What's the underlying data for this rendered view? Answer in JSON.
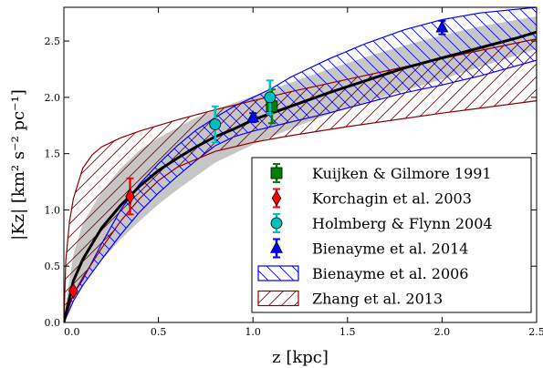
{
  "chart_data": {
    "type": "scatter",
    "title": "",
    "xlabel": "z [kpc]",
    "ylabel": "|Kz| [km² s⁻² pc⁻¹]",
    "xlim": [
      0.0,
      2.5
    ],
    "ylim": [
      0.0,
      2.8
    ],
    "grid": false,
    "legend_position": "bottom-right",
    "x_ticks": [
      "0.0",
      "0.5",
      "1.0",
      "1.5",
      "2.0",
      "2.5"
    ],
    "y_ticks": [
      "0.0",
      "0.5",
      "1.0",
      "1.5",
      "2.0",
      "2.5"
    ],
    "best_fit": {
      "color": "#000000",
      "curve": [
        [
          0.0,
          0.0
        ],
        [
          0.05,
          0.37
        ],
        [
          0.1,
          0.56
        ],
        [
          0.2,
          0.84
        ],
        [
          0.3,
          1.04
        ],
        [
          0.4,
          1.21
        ],
        [
          0.5,
          1.35
        ],
        [
          0.6,
          1.46
        ],
        [
          0.7,
          1.56
        ],
        [
          0.8,
          1.65
        ],
        [
          0.9,
          1.72
        ],
        [
          1.0,
          1.8
        ],
        [
          1.2,
          1.92
        ],
        [
          1.4,
          2.04
        ],
        [
          1.6,
          2.15
        ],
        [
          1.8,
          2.26
        ],
        [
          2.0,
          2.35
        ],
        [
          2.2,
          2.44
        ],
        [
          2.4,
          2.53
        ],
        [
          2.5,
          2.58
        ]
      ]
    },
    "gray_band": {
      "color": "#c6c6c6",
      "upper": [
        [
          0.0,
          0.05
        ],
        [
          0.05,
          0.6
        ],
        [
          0.1,
          0.88
        ],
        [
          0.2,
          1.16
        ],
        [
          0.3,
          1.37
        ],
        [
          0.4,
          1.53
        ],
        [
          0.5,
          1.64
        ],
        [
          0.6,
          1.73
        ],
        [
          0.7,
          1.82
        ],
        [
          0.8,
          1.89
        ],
        [
          1.0,
          2.01
        ],
        [
          1.2,
          2.13
        ],
        [
          1.4,
          2.25
        ],
        [
          1.6,
          2.36
        ],
        [
          1.8,
          2.46
        ],
        [
          2.0,
          2.55
        ],
        [
          2.2,
          2.63
        ],
        [
          2.5,
          2.72
        ]
      ],
      "lower": [
        [
          0.0,
          0.0
        ],
        [
          0.05,
          0.2
        ],
        [
          0.1,
          0.33
        ],
        [
          0.2,
          0.55
        ],
        [
          0.3,
          0.74
        ],
        [
          0.4,
          0.9
        ],
        [
          0.5,
          1.05
        ],
        [
          0.6,
          1.18
        ],
        [
          0.7,
          1.3
        ],
        [
          0.8,
          1.42
        ],
        [
          1.0,
          1.58
        ],
        [
          1.2,
          1.72
        ],
        [
          1.4,
          1.85
        ],
        [
          1.6,
          1.96
        ],
        [
          1.8,
          2.06
        ],
        [
          2.0,
          2.16
        ],
        [
          2.2,
          2.27
        ],
        [
          2.5,
          2.43
        ]
      ]
    },
    "series": [
      {
        "name": "Kuijken & Gilmore 1991",
        "marker": "square",
        "color": "#008000",
        "points": [
          {
            "x": 1.1,
            "y": 1.92,
            "yerr": 0.15
          }
        ]
      },
      {
        "name": "Korchagin et al. 2003",
        "marker": "diamond",
        "color": "#ff0000",
        "points": [
          {
            "x": 0.05,
            "y": 0.28,
            "yerr": 0.02
          },
          {
            "x": 0.35,
            "y": 1.12,
            "yerr": 0.16
          }
        ]
      },
      {
        "name": "Holmberg & Flynn 2004",
        "marker": "circle",
        "color": "#00bfbf",
        "points": [
          {
            "x": 0.8,
            "y": 1.76,
            "yerr": 0.16
          },
          {
            "x": 1.09,
            "y": 2.0,
            "yerr": 0.15
          }
        ]
      },
      {
        "name": "Bienayme et al. 2014",
        "marker": "triangle",
        "color": "#0000ff",
        "points": [
          {
            "x": 1.0,
            "y": 1.82,
            "yerr": 0.04
          },
          {
            "x": 2.0,
            "y": 2.62,
            "yerr": 0.06
          }
        ]
      }
    ],
    "bands": [
      {
        "name": "Bienayme et al. 2006",
        "color": "#0000ff",
        "hatch": "backslash",
        "upper": [
          [
            0.0,
            0.05
          ],
          [
            0.05,
            0.25
          ],
          [
            0.1,
            0.38
          ],
          [
            0.2,
            0.7
          ],
          [
            0.3,
            1.0
          ],
          [
            0.4,
            1.23
          ],
          [
            0.5,
            1.41
          ],
          [
            0.6,
            1.57
          ],
          [
            0.7,
            1.71
          ],
          [
            0.8,
            1.82
          ],
          [
            0.9,
            1.92
          ],
          [
            1.0,
            2.0
          ],
          [
            1.1,
            2.08
          ],
          [
            1.2,
            2.18
          ],
          [
            1.4,
            2.34
          ],
          [
            1.6,
            2.48
          ],
          [
            1.8,
            2.6
          ],
          [
            2.0,
            2.69
          ],
          [
            2.2,
            2.75
          ],
          [
            2.5,
            2.8
          ]
        ],
        "lower": [
          [
            0.0,
            0.0
          ],
          [
            0.05,
            0.19
          ],
          [
            0.1,
            0.33
          ],
          [
            0.2,
            0.56
          ],
          [
            0.3,
            0.78
          ],
          [
            0.4,
            0.98
          ],
          [
            0.5,
            1.15
          ],
          [
            0.6,
            1.3
          ],
          [
            0.7,
            1.44
          ],
          [
            0.8,
            1.57
          ],
          [
            0.9,
            1.65
          ],
          [
            1.0,
            1.7
          ],
          [
            1.2,
            1.78
          ],
          [
            1.4,
            1.86
          ],
          [
            1.6,
            1.95
          ],
          [
            1.8,
            2.04
          ],
          [
            2.0,
            2.11
          ],
          [
            2.2,
            2.19
          ],
          [
            2.5,
            2.33
          ]
        ]
      },
      {
        "name": "Zhang et al. 2013",
        "color": "#8b0000",
        "hatch": "slash",
        "upper": [
          [
            0.0,
            0.0
          ],
          [
            0.01,
            0.55
          ],
          [
            0.03,
            0.9
          ],
          [
            0.05,
            1.1
          ],
          [
            0.1,
            1.37
          ],
          [
            0.15,
            1.49
          ],
          [
            0.2,
            1.56
          ],
          [
            0.3,
            1.64
          ],
          [
            0.4,
            1.7
          ],
          [
            0.6,
            1.8
          ],
          [
            0.8,
            1.89
          ],
          [
            1.0,
            1.97
          ],
          [
            1.2,
            2.05
          ],
          [
            1.5,
            2.16
          ],
          [
            1.8,
            2.27
          ],
          [
            2.1,
            2.38
          ],
          [
            2.5,
            2.52
          ]
        ],
        "lower": [
          [
            0.0,
            0.0
          ],
          [
            0.05,
            0.25
          ],
          [
            0.1,
            0.4
          ],
          [
            0.2,
            0.66
          ],
          [
            0.3,
            0.9
          ],
          [
            0.4,
            1.1
          ],
          [
            0.5,
            1.26
          ],
          [
            0.6,
            1.38
          ],
          [
            0.8,
            1.52
          ],
          [
            1.0,
            1.6
          ],
          [
            1.2,
            1.66
          ],
          [
            1.5,
            1.74
          ],
          [
            2.0,
            1.86
          ],
          [
            2.5,
            1.97
          ]
        ]
      }
    ]
  }
}
